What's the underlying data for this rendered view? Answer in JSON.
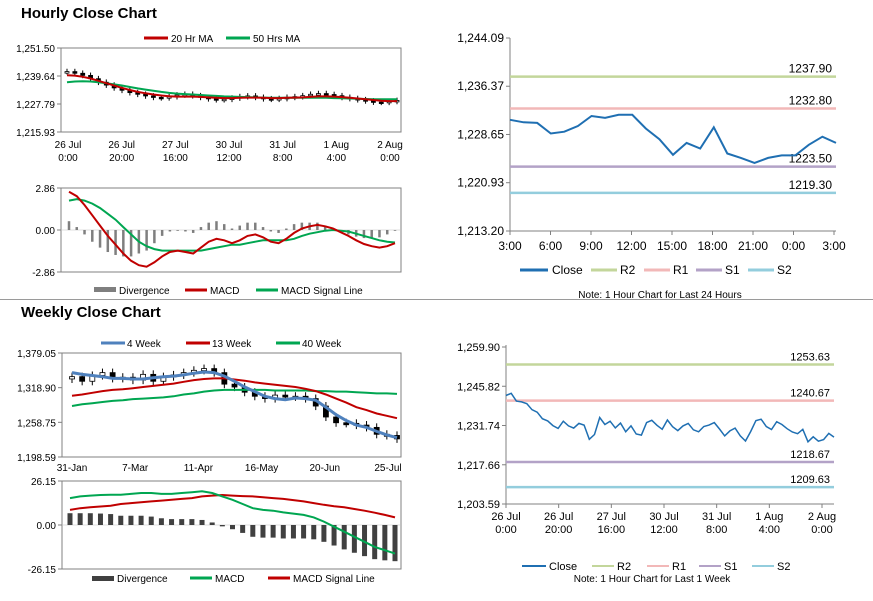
{
  "colors": {
    "ma20": "#c00000",
    "ma50": "#00a651",
    "wk4": "#4f81bd",
    "wk13": "#c00000",
    "wk40": "#00a651",
    "close": "#1f6fb2",
    "r2": "#c3d69b",
    "r1": "#f2b8b8",
    "s1": "#b3a2c7",
    "s2": "#93cddd",
    "divergence": "#7f7f7f",
    "macd_hourly": "#c00000",
    "signal_hourly": "#00a651",
    "macd_weekly": "#00a651",
    "signal_weekly": "#c00000"
  },
  "hourly": {
    "title": "Hourly Close Chart",
    "note": "Note: 1 Hour Chart for Last 24 Hours",
    "chart_data": [
      {
        "id": "hourly-price",
        "type": "candlestick",
        "legend": [
          "20 Hr MA",
          "50 Hrs MA"
        ],
        "y_ticks": [
          "1,251.50",
          "1,239.64",
          "1,227.79",
          "1,215.93"
        ],
        "ylim": [
          1215.93,
          1251.5
        ],
        "x_labels": [
          [
            "26 Jul",
            "0:00"
          ],
          [
            "26 Jul",
            "20:00"
          ],
          [
            "27 Jul",
            "16:00"
          ],
          [
            "30 Jul",
            "12:00"
          ],
          [
            "31 Jul",
            "8:00"
          ],
          [
            "1 Aug",
            "4:00"
          ],
          [
            "2 Aug",
            "0:00"
          ]
        ],
        "close": [
          1241.5,
          1240.8,
          1239.9,
          1238.5,
          1237.0,
          1235.8,
          1234.6,
          1233.6,
          1232.6,
          1231.9,
          1231.2,
          1230.6,
          1230.4,
          1230.9,
          1231.6,
          1231.9,
          1231.3,
          1230.6,
          1230.0,
          1229.6,
          1229.8,
          1230.3,
          1230.9,
          1231.2,
          1230.6,
          1230.0,
          1229.8,
          1230.1,
          1230.6,
          1230.9,
          1231.3,
          1231.9,
          1232.2,
          1231.8,
          1231.3,
          1230.6,
          1230.1,
          1229.6,
          1229.1,
          1228.6,
          1228.5,
          1228.9,
          1229.3
        ],
        "ma20": [
          1240.0,
          1239.8,
          1239.3,
          1238.6,
          1237.6,
          1236.6,
          1235.6,
          1234.6,
          1233.7,
          1232.9,
          1232.3,
          1231.8,
          1231.4,
          1231.1,
          1230.9,
          1230.9,
          1230.9,
          1230.8,
          1230.6,
          1230.4,
          1230.3,
          1230.3,
          1230.4,
          1230.5,
          1230.5,
          1230.4,
          1230.3,
          1230.3,
          1230.4,
          1230.5,
          1230.6,
          1230.8,
          1231.0,
          1231.0,
          1230.9,
          1230.7,
          1230.4,
          1230.1,
          1229.8,
          1229.5,
          1229.2,
          1229.0,
          1229.0
        ],
        "ma50": [
          1237.0,
          1237.3,
          1237.4,
          1237.3,
          1237.0,
          1236.6,
          1236.1,
          1235.6,
          1235.0,
          1234.4,
          1233.9,
          1233.4,
          1232.9,
          1232.5,
          1232.2,
          1232.0,
          1231.8,
          1231.6,
          1231.4,
          1231.2,
          1231.0,
          1230.9,
          1230.8,
          1230.7,
          1230.6,
          1230.5,
          1230.4,
          1230.4,
          1230.4,
          1230.4,
          1230.4,
          1230.4,
          1230.4,
          1230.4,
          1230.3,
          1230.2,
          1230.1,
          1230.0,
          1229.9,
          1229.8,
          1229.8,
          1229.8,
          1229.8
        ]
      },
      {
        "id": "hourly-macd",
        "type": "macd",
        "legend": [
          "Divergence",
          "MACD",
          "MACD Signal Line"
        ],
        "y_ticks": [
          "2.86",
          "0.00",
          "-2.86"
        ],
        "ylim": [
          -2.86,
          2.86
        ],
        "macd": [
          2.6,
          2.3,
          1.7,
          1.0,
          0.3,
          -0.4,
          -1.0,
          -1.6,
          -2.1,
          -2.4,
          -2.5,
          -2.2,
          -1.8,
          -1.5,
          -1.4,
          -1.5,
          -1.6,
          -1.2,
          -0.8,
          -0.6,
          -0.7,
          -0.9,
          -0.7,
          -0.4,
          -0.3,
          -0.5,
          -0.8,
          -0.9,
          -0.6,
          -0.2,
          0.1,
          0.25,
          0.35,
          0.25,
          0.1,
          -0.15,
          -0.4,
          -0.7,
          -0.95,
          -1.1,
          -1.2,
          -1.1,
          -0.9
        ],
        "signal": [
          2.0,
          2.1,
          2.0,
          1.8,
          1.5,
          1.1,
          0.7,
          0.2,
          -0.3,
          -0.8,
          -1.1,
          -1.3,
          -1.4,
          -1.4,
          -1.4,
          -1.4,
          -1.4,
          -1.4,
          -1.3,
          -1.2,
          -1.1,
          -1.0,
          -1.0,
          -0.9,
          -0.8,
          -0.7,
          -0.7,
          -0.7,
          -0.7,
          -0.6,
          -0.4,
          -0.25,
          -0.15,
          -0.05,
          0.0,
          -0.05,
          -0.1,
          -0.25,
          -0.4,
          -0.55,
          -0.7,
          -0.8,
          -0.85
        ]
      },
      {
        "id": "hourly-levels",
        "type": "line",
        "y_ticks": [
          "1,244.09",
          "1,236.37",
          "1,228.65",
          "1,220.93",
          "1,213.20"
        ],
        "ylim": [
          1213.2,
          1244.09
        ],
        "x_labels": [
          "3:00",
          "6:00",
          "9:00",
          "12:00",
          "15:00",
          "18:00",
          "21:00",
          "0:00",
          "3:00"
        ],
        "legend": [
          "Close",
          "R2",
          "R1",
          "S1",
          "S2"
        ],
        "close": [
          1231.0,
          1230.6,
          1230.5,
          1228.8,
          1229.1,
          1230.0,
          1231.6,
          1231.3,
          1231.8,
          1231.8,
          1229.6,
          1227.9,
          1225.4,
          1227.3,
          1226.4,
          1229.8,
          1225.6,
          1224.9,
          1224.1,
          1224.9,
          1225.3,
          1225.3,
          1227.0,
          1228.3,
          1227.3
        ],
        "levels": {
          "R2": "1237.90",
          "R1": "1232.80",
          "S1": "1223.50",
          "S2": "1219.30"
        },
        "level_values": {
          "R2": 1237.9,
          "R1": 1232.8,
          "S1": 1223.5,
          "S2": 1219.3
        }
      }
    ]
  },
  "weekly": {
    "title": "Weekly Close Chart",
    "note": "Note: 1 Hour Chart for Last 1 Week",
    "chart_data": [
      {
        "id": "weekly-price",
        "type": "candlestick",
        "legend": [
          "4 Week",
          "13 Week",
          "40 Week"
        ],
        "y_ticks": [
          "1,379.05",
          "1,318.90",
          "1,258.75",
          "1,198.59"
        ],
        "ylim": [
          1198.59,
          1379.05
        ],
        "x_labels": [
          "31-Jan",
          "7-Mar",
          "11-Apr",
          "16-May",
          "20-Jun",
          "25-Jul"
        ],
        "close": [
          1338,
          1330,
          1340,
          1345,
          1335,
          1337,
          1332,
          1342,
          1330,
          1338,
          1341,
          1345,
          1349,
          1352,
          1345,
          1325,
          1320,
          1311,
          1304,
          1300,
          1306,
          1303,
          1304,
          1300,
          1287,
          1268,
          1258,
          1257,
          1254,
          1250,
          1238,
          1236,
          1230
        ],
        "wk4": [
          1345,
          1342,
          1340,
          1338,
          1335,
          1335,
          1334,
          1334,
          1336,
          1338,
          1339,
          1341,
          1344,
          1346,
          1345,
          1339,
          1330,
          1320,
          1312,
          1304,
          1300,
          1298,
          1301,
          1300,
          1297,
          1285,
          1272,
          1262,
          1254,
          1250,
          1243,
          1237,
          1232
        ],
        "wk13": [
          1305,
          1307,
          1310,
          1313,
          1315,
          1316,
          1318,
          1320,
          1322,
          1324,
          1326,
          1329,
          1332,
          1334,
          1335,
          1335,
          1333,
          1331,
          1328,
          1326,
          1324,
          1322,
          1320,
          1317,
          1313,
          1307,
          1300,
          1293,
          1285,
          1280,
          1274,
          1270,
          1266
        ],
        "wk40": [
          1287,
          1290,
          1292,
          1294,
          1296,
          1297,
          1299,
          1300,
          1301,
          1302,
          1304,
          1307,
          1309,
          1312,
          1314,
          1315,
          1315,
          1315,
          1315,
          1315,
          1314,
          1314,
          1314,
          1314,
          1313,
          1313,
          1312,
          1312,
          1311,
          1310,
          1309,
          1309,
          1308
        ]
      },
      {
        "id": "weekly-macd",
        "type": "macd",
        "legend": [
          "Divergence",
          "MACD",
          "MACD Signal Line"
        ],
        "y_ticks": [
          "26.15",
          "0.00",
          "-26.15"
        ],
        "ylim": [
          -26.15,
          26.15
        ],
        "macd": [
          16,
          17,
          17.5,
          17.8,
          18,
          18,
          18.5,
          19,
          19,
          18.5,
          18.5,
          19,
          19.5,
          20,
          19,
          17,
          15,
          12.5,
          10,
          9,
          8.5,
          7.5,
          6.8,
          6,
          4.5,
          2,
          -1,
          -4,
          -7,
          -10,
          -13,
          -15,
          -17
        ],
        "signal": [
          9,
          10,
          10.5,
          11,
          11.5,
          12.5,
          13,
          13.5,
          14,
          14.5,
          15,
          15.5,
          16,
          17,
          17.5,
          17.8,
          17.5,
          17.2,
          17,
          16.5,
          16,
          15.5,
          14.8,
          14,
          13,
          12,
          11.2,
          10.5,
          9.5,
          8.5,
          7.3,
          6,
          4.5
        ]
      },
      {
        "id": "weekly-levels",
        "type": "line",
        "y_ticks": [
          "1,259.90",
          "1,245.82",
          "1,231.74",
          "1,217.66",
          "1,203.59"
        ],
        "ylim": [
          1203.59,
          1259.9
        ],
        "x_labels": [
          [
            "26 Jul",
            "0:00"
          ],
          [
            "26 Jul",
            "20:00"
          ],
          [
            "27 Jul",
            "16:00"
          ],
          [
            "30 Jul",
            "12:00"
          ],
          [
            "31 Jul",
            "8:00"
          ],
          [
            "1 Aug",
            "4:00"
          ],
          [
            "2 Aug",
            "0:00"
          ]
        ],
        "legend": [
          "Close",
          "R2",
          "R1",
          "S1",
          "S2"
        ],
        "close": [
          1242.5,
          1243.3,
          1240.5,
          1240.2,
          1239.6,
          1237.4,
          1236.5,
          1234.2,
          1233.4,
          1231.7,
          1230.7,
          1233.3,
          1231.6,
          1230.8,
          1232.5,
          1231.9,
          1226.8,
          1228.5,
          1234.6,
          1232.1,
          1233.3,
          1230.9,
          1232.6,
          1229.5,
          1231.6,
          1228.7,
          1228.3,
          1232.8,
          1233.6,
          1231.8,
          1230.4,
          1233.7,
          1231.3,
          1229.9,
          1231.6,
          1232.5,
          1230.2,
          1229.5,
          1231.4,
          1231.9,
          1232.8,
          1230.5,
          1228.0,
          1229.8,
          1230.8,
          1228.0,
          1226.2,
          1229.6,
          1233.5,
          1234.0,
          1231.4,
          1230.3,
          1233.1,
          1232.1,
          1230.6,
          1229.4,
          1228.8,
          1230.4,
          1225.9,
          1227.7,
          1226.1,
          1226.7,
          1228.9,
          1227.6
        ],
        "levels": {
          "R2": "1253.63",
          "R1": "1240.67",
          "S1": "1218.67",
          "S2": "1209.63"
        },
        "level_values": {
          "R2": 1253.63,
          "R1": 1240.67,
          "S1": 1218.67,
          "S2": 1209.63
        }
      }
    ]
  }
}
